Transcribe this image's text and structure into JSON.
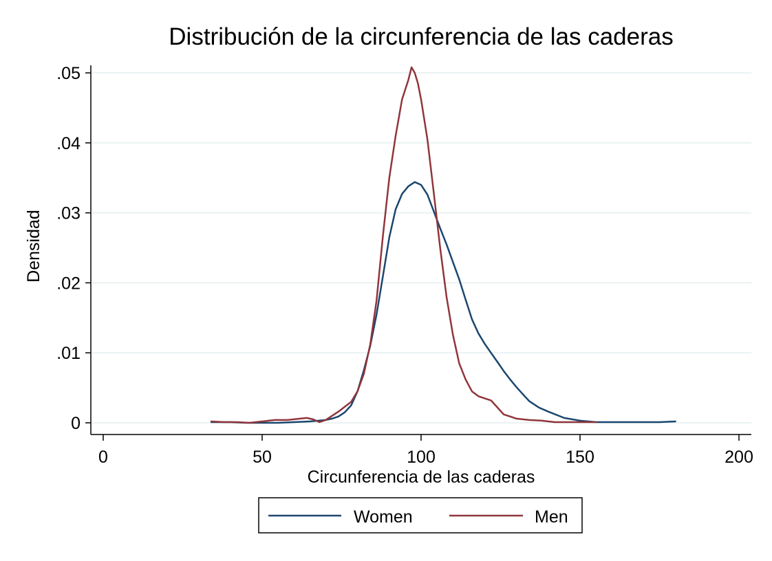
{
  "chart_data": {
    "type": "line",
    "title": "Distribución de la circunferencia de las caderas",
    "xlabel": "Circunferencia de las caderas",
    "ylabel": "Densidad",
    "xlim": [
      0,
      200
    ],
    "ylim": [
      0,
      0.05
    ],
    "x_ticks": [
      0,
      50,
      100,
      150,
      200
    ],
    "x_tick_labels": [
      "0",
      "50",
      "100",
      "150",
      "200"
    ],
    "y_ticks": [
      0,
      0.01,
      0.02,
      0.03,
      0.04,
      0.05
    ],
    "y_tick_labels": [
      "0",
      ".01",
      ".02",
      ".03",
      ".04",
      ".05"
    ],
    "grid": "horizontal",
    "legend_position": "bottom",
    "series": [
      {
        "name": "Women",
        "color": "#1a476f",
        "x": [
          34,
          40,
          45,
          50,
          55,
          60,
          65,
          70,
          72,
          74,
          76,
          78,
          80,
          82,
          84,
          86,
          88,
          90,
          92,
          94,
          96,
          98,
          100,
          102,
          104,
          106,
          108,
          110,
          112,
          114,
          116,
          118,
          120,
          122,
          124,
          126,
          128,
          130,
          132,
          134,
          137,
          140,
          145,
          150,
          155,
          160,
          165,
          170,
          175,
          180
        ],
        "values": [
          0.0001,
          0.0001,
          0.0,
          0.0,
          0.0,
          0.0001,
          0.0002,
          0.0004,
          0.0006,
          0.0009,
          0.0015,
          0.0025,
          0.0045,
          0.0075,
          0.011,
          0.0155,
          0.021,
          0.0265,
          0.0305,
          0.0327,
          0.0338,
          0.0344,
          0.034,
          0.0326,
          0.0302,
          0.0278,
          0.0255,
          0.023,
          0.0205,
          0.0176,
          0.0148,
          0.0128,
          0.0113,
          0.01,
          0.0087,
          0.0074,
          0.0062,
          0.0051,
          0.0041,
          0.0031,
          0.0022,
          0.0016,
          0.0007,
          0.0003,
          0.0001,
          0.0001,
          0.0001,
          0.0001,
          0.0001,
          0.0002
        ]
      },
      {
        "name": "Men",
        "color": "#90353b",
        "x": [
          34,
          38,
          42,
          46,
          50,
          54,
          58,
          62,
          64,
          66,
          68,
          70,
          72,
          74,
          76,
          78,
          80,
          82,
          84,
          86,
          88,
          90,
          92,
          94,
          96,
          97,
          98,
          99,
          100,
          102,
          104,
          106,
          108,
          110,
          112,
          114,
          116,
          118,
          120,
          122,
          124,
          126,
          128,
          130,
          134,
          138,
          142,
          146,
          150,
          155
        ],
        "values": [
          0.0002,
          0.0001,
          0.0001,
          0.0,
          0.0002,
          0.0004,
          0.0004,
          0.0006,
          0.0007,
          0.0005,
          0.0001,
          0.0004,
          0.001,
          0.0016,
          0.0023,
          0.003,
          0.0045,
          0.007,
          0.0112,
          0.0175,
          0.0268,
          0.035,
          0.041,
          0.0462,
          0.049,
          0.0508,
          0.05,
          0.0485,
          0.0462,
          0.0405,
          0.0328,
          0.025,
          0.018,
          0.0126,
          0.0085,
          0.0062,
          0.0045,
          0.0038,
          0.0035,
          0.0032,
          0.0022,
          0.0012,
          0.0009,
          0.0006,
          0.0004,
          0.0003,
          0.0001,
          0.0001,
          0.0001,
          0.0001
        ]
      }
    ]
  }
}
